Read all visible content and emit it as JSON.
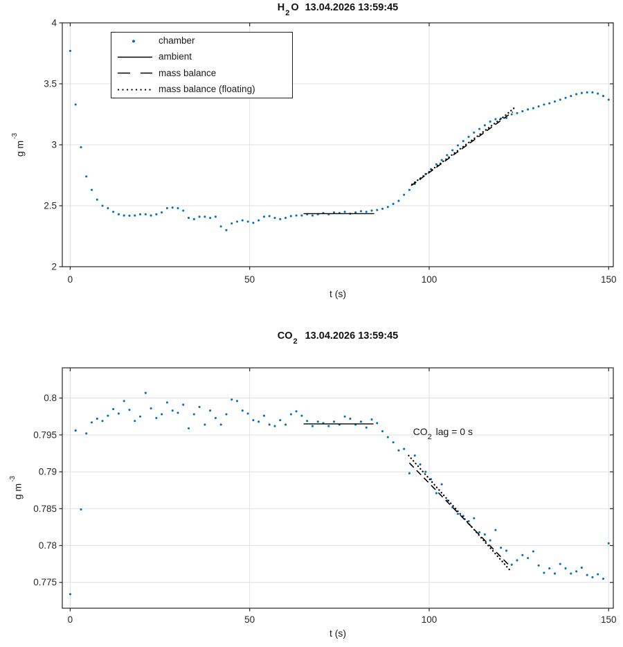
{
  "figure": {
    "background": "#ffffff",
    "colors": {
      "marker_blue": "#0072BD",
      "line_black": "#000000",
      "grid_gray": "#e0e0e0",
      "axis_gray": "#262626"
    },
    "legend": {
      "items": [
        {
          "label": "chamber",
          "marker": "dot"
        },
        {
          "label": "ambient",
          "marker": "solid-line"
        },
        {
          "label": "mass balance",
          "marker": "dashed-line"
        },
        {
          "label": "mass balance (floating)",
          "marker": "dotted-line"
        }
      ]
    },
    "charts": [
      {
        "title": {
          "pre": "H",
          "sub": "2",
          "mid": "O",
          "date": "13.04.2026 13:59:45"
        },
        "title_text": "H2O  13.04.2026 13:59:45",
        "ylabel": {
          "pre": "g m",
          "sup": "-3"
        },
        "xlabel": "t (s)"
      },
      {
        "title": {
          "pre": "CO",
          "sub": "2",
          "mid": "",
          "date": "13.04.2026 13:59:45"
        },
        "title_text": "CO2  13.04.2026 13:59:45",
        "ylabel": {
          "pre": "g m",
          "sup": "-3"
        },
        "xlabel": "t (s)",
        "annotation": {
          "pre": "CO",
          "sub": "2",
          "post": " lag = 0 s"
        }
      }
    ]
  },
  "chart_data": [
    {
      "type": "scatter",
      "title": "H2O  13.04.2026 13:59:45",
      "xlabel": "t (s)",
      "ylabel": "g m^-3",
      "xlim": [
        -2.2,
        151.3
      ],
      "ylim": [
        2,
        4
      ],
      "xticks": [
        0,
        50,
        100,
        150
      ],
      "xtick_labels": [
        "0",
        "50",
        "100",
        "150"
      ],
      "yticks": [
        2,
        2.5,
        3,
        3.5,
        4
      ],
      "ytick_labels": [
        "2",
        "2.5",
        "3",
        "3.5",
        "4"
      ],
      "grid": true,
      "legend_position": "top-left-inside",
      "series": [
        {
          "name": "chamber",
          "type": "scatter",
          "color": "#0072BD",
          "t0": 0,
          "dt": 1.5,
          "values": [
            3.77,
            3.33,
            2.98,
            2.74,
            2.63,
            2.55,
            2.5,
            2.48,
            2.45,
            2.43,
            2.42,
            2.418,
            2.42,
            2.43,
            2.43,
            2.42,
            2.43,
            2.445,
            2.48,
            2.485,
            2.48,
            2.46,
            2.4,
            2.39,
            2.41,
            2.41,
            2.4,
            2.41,
            2.33,
            2.3,
            2.355,
            2.37,
            2.38,
            2.37,
            2.36,
            2.38,
            2.41,
            2.415,
            2.4,
            2.39,
            2.4,
            2.415,
            2.42,
            2.42,
            2.43,
            2.42,
            2.43,
            2.44,
            2.43,
            2.445,
            2.44,
            2.45,
            2.435,
            2.445,
            2.455,
            2.45,
            2.46,
            2.465,
            2.475,
            2.49,
            2.515,
            2.54,
            2.59,
            2.63,
            2.68,
            2.72,
            2.76,
            2.8,
            2.84,
            2.875,
            2.915,
            2.955,
            2.995,
            3.03,
            3.065,
            3.1,
            3.13,
            3.16,
            3.19,
            3.21,
            3.215,
            3.22,
            3.25,
            3.26,
            3.275,
            3.29,
            3.3,
            3.315,
            3.33,
            3.34,
            3.355,
            3.37,
            3.385,
            3.4,
            3.415,
            3.425,
            3.43,
            3.43,
            3.42,
            3.4,
            3.37
          ]
        },
        {
          "name": "ambient",
          "type": "line",
          "style": "solid",
          "color": "#000000",
          "x": [
            65,
            84.7
          ],
          "y": [
            2.435,
            2.435
          ]
        },
        {
          "name": "mass balance",
          "type": "line",
          "style": "dashed",
          "color": "#000000",
          "x": [
            95,
            123.3
          ],
          "y": [
            2.665,
            3.27
          ]
        },
        {
          "name": "mass balance (floating)",
          "type": "line",
          "style": "dotted",
          "color": "#000000",
          "x": [
            95.2,
            121,
            123.8
          ],
          "y": [
            2.675,
            3.235,
            3.305
          ]
        }
      ]
    },
    {
      "type": "scatter",
      "title": "CO2  13.04.2026 13:59:45",
      "xlabel": "t (s)",
      "ylabel": "g m^-3",
      "xlim": [
        -2.2,
        151.3
      ],
      "ylim": [
        0.7715,
        0.8041
      ],
      "xticks": [
        0,
        50,
        100,
        150
      ],
      "xtick_labels": [
        "0",
        "50",
        "100",
        "150"
      ],
      "yticks": [
        0.775,
        0.78,
        0.785,
        0.79,
        0.795,
        0.8
      ],
      "ytick_labels": [
        "0.775",
        "0.78",
        "0.785",
        "0.79",
        "0.795",
        "0.8"
      ],
      "grid": true,
      "annotations": [
        {
          "text": "CO2 lag = 0 s",
          "x": 95.5,
          "y": 0.7953
        }
      ],
      "series": [
        {
          "name": "chamber",
          "type": "scatter",
          "color": "#0072BD",
          "t0": 0,
          "dt": 1.5,
          "values": [
            0.7734,
            0.7956,
            0.7849,
            0.7952,
            0.7967,
            0.7972,
            0.7969,
            0.7976,
            0.7985,
            0.7979,
            0.7996,
            0.7984,
            0.7969,
            0.7975,
            0.8007,
            0.7986,
            0.7973,
            0.7978,
            0.7994,
            0.7983,
            0.798,
            0.7991,
            0.7959,
            0.7978,
            0.7988,
            0.7964,
            0.7983,
            0.7973,
            0.7964,
            0.7978,
            0.7998,
            0.7996,
            0.7983,
            0.7979,
            0.797,
            0.7968,
            0.7976,
            0.7964,
            0.7962,
            0.797,
            0.7964,
            0.7978,
            0.7982,
            0.7976,
            0.7969,
            0.7962,
            0.7968,
            0.7966,
            0.7962,
            0.7968,
            0.7964,
            0.7975,
            0.7972,
            0.7964,
            0.7968,
            0.796,
            0.7971,
            0.7966,
            0.7955,
            0.7947,
            0.794,
            0.7929,
            0.7931,
            0.7898,
            0.7922,
            0.791,
            0.79,
            0.789,
            0.7871,
            0.7883,
            0.7861,
            0.7852,
            0.7843,
            0.784,
            0.7833,
            0.7837,
            0.7818,
            0.7815,
            0.7807,
            0.7821,
            0.7797,
            0.7793,
            0.7774,
            0.778,
            0.7787,
            0.7783,
            0.7792,
            0.7773,
            0.7763,
            0.7769,
            0.7762,
            0.7775,
            0.7769,
            0.7762,
            0.7765,
            0.777,
            0.776,
            0.7757,
            0.7761,
            0.7755,
            0.7803
          ]
        },
        {
          "name": "ambient",
          "type": "line",
          "style": "solid",
          "color": "#000000",
          "x": [
            65,
            84.5
          ],
          "y": [
            0.7965,
            0.7965
          ]
        },
        {
          "name": "mass balance",
          "type": "line",
          "style": "dashed",
          "color": "#000000",
          "x": [
            94.5,
            122.5
          ],
          "y": [
            0.7912,
            0.7772
          ]
        },
        {
          "name": "mass balance (floating)",
          "type": "line",
          "style": "dotted",
          "color": "#000000",
          "x": [
            94.3,
            122.6
          ],
          "y": [
            0.7922,
            0.7766
          ]
        }
      ]
    }
  ]
}
